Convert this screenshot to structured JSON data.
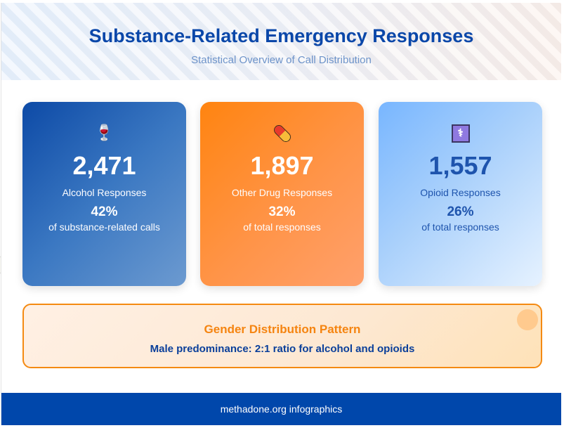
{
  "header": {
    "title": "Substance-Related Emergency Responses",
    "subtitle": "Statistical Overview of Call Distribution"
  },
  "cards": [
    {
      "icon": "wine-glass-icon",
      "icon_glyph": "🍷",
      "value": "2,471",
      "label": "Alcohol Responses",
      "percent": "42%",
      "description": "of substance-related calls",
      "color": "#0d4aa6"
    },
    {
      "icon": "pill-icon",
      "icon_glyph": "💊",
      "value": "1,897",
      "label": "Other Drug Responses",
      "percent": "32%",
      "description": "of total responses",
      "color": "#ff8410"
    },
    {
      "icon": "medical-symbol-icon",
      "icon_glyph": "⚕",
      "value": "1,557",
      "label": "Opioid Responses",
      "percent": "26%",
      "description": "of total responses",
      "color": "#78b6ff"
    }
  ],
  "callout": {
    "title": "Gender Distribution Pattern",
    "text": "Male predominance: 2:1 ratio for alcohol and opioids",
    "accent": "#f48a12"
  },
  "footer": {
    "text": "methadone.org infographics",
    "color": "#0047ab"
  }
}
